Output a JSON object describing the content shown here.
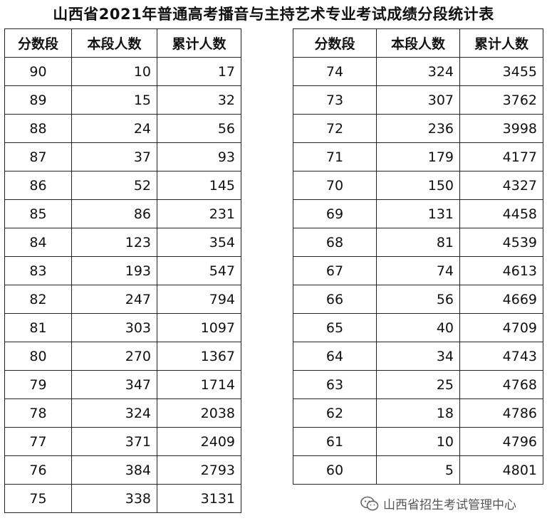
{
  "title": "山西省2021年普通高考播音与主持艺术专业考试成绩分段统计表",
  "headers": [
    "分数段",
    "本段人数",
    "累计人数"
  ],
  "tables": [
    {
      "rows": [
        [
          "90",
          "10",
          "17"
        ],
        [
          "89",
          "15",
          "32"
        ],
        [
          "88",
          "24",
          "56"
        ],
        [
          "87",
          "37",
          "93"
        ],
        [
          "86",
          "52",
          "145"
        ],
        [
          "85",
          "86",
          "231"
        ],
        [
          "84",
          "123",
          "354"
        ],
        [
          "83",
          "193",
          "547"
        ],
        [
          "82",
          "247",
          "794"
        ],
        [
          "81",
          "303",
          "1097"
        ],
        [
          "80",
          "270",
          "1367"
        ],
        [
          "79",
          "347",
          "1714"
        ],
        [
          "78",
          "324",
          "2038"
        ],
        [
          "77",
          "371",
          "2409"
        ],
        [
          "76",
          "384",
          "2793"
        ],
        [
          "75",
          "338",
          "3131"
        ]
      ]
    },
    {
      "rows": [
        [
          "74",
          "324",
          "3455"
        ],
        [
          "73",
          "307",
          "3762"
        ],
        [
          "72",
          "236",
          "3998"
        ],
        [
          "71",
          "179",
          "4177"
        ],
        [
          "70",
          "150",
          "4327"
        ],
        [
          "69",
          "131",
          "4458"
        ],
        [
          "68",
          "81",
          "4539"
        ],
        [
          "67",
          "74",
          "4613"
        ],
        [
          "66",
          "56",
          "4669"
        ],
        [
          "65",
          "40",
          "4709"
        ],
        [
          "64",
          "34",
          "4743"
        ],
        [
          "63",
          "25",
          "4768"
        ],
        [
          "62",
          "18",
          "4786"
        ],
        [
          "61",
          "10",
          "4796"
        ],
        [
          "60",
          "5",
          "4801"
        ]
      ]
    }
  ],
  "watermark": {
    "icon": "wechat-icon",
    "text": "山西省招生考试管理中心"
  }
}
